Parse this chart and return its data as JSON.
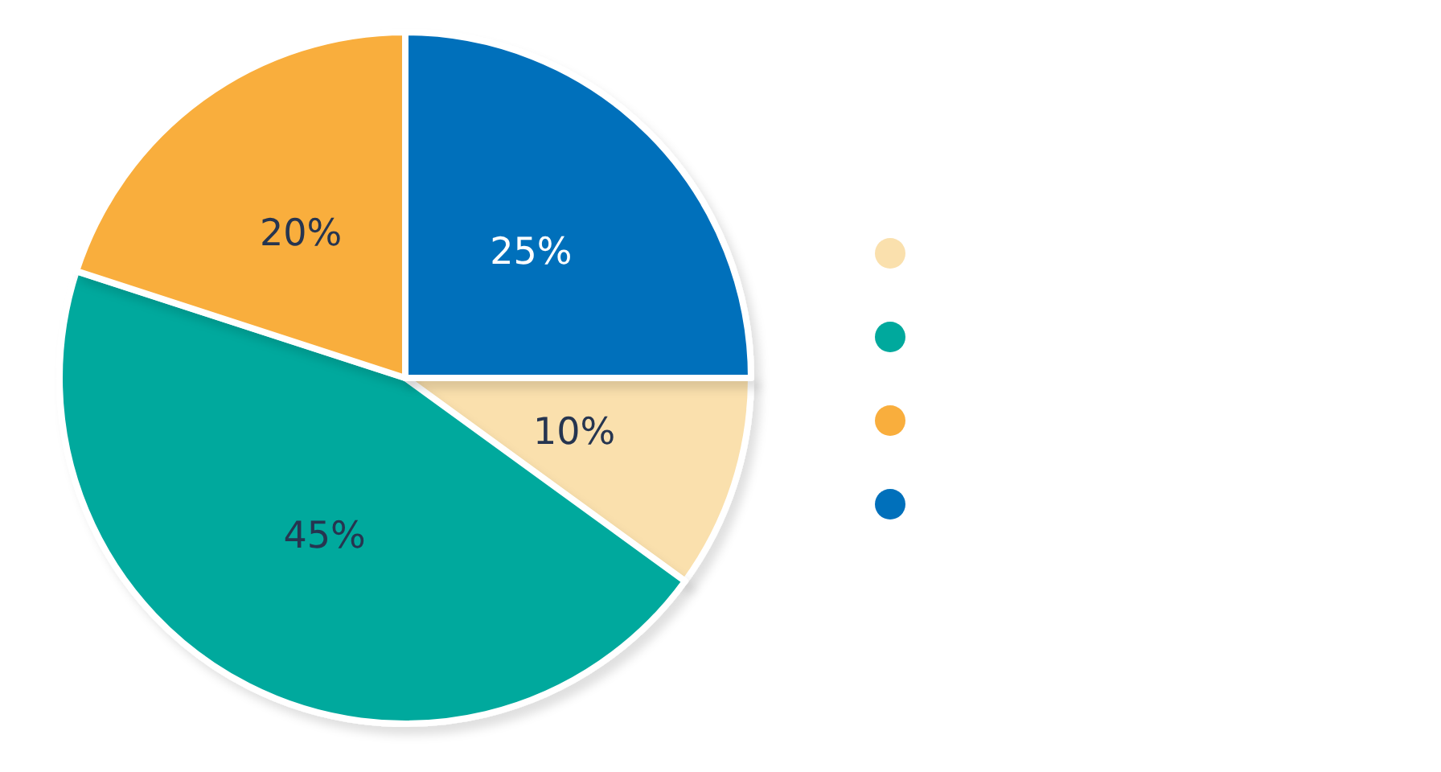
{
  "chart_data": {
    "type": "pie",
    "categories": [
      null,
      null,
      null,
      null
    ],
    "values": [
      10,
      45,
      20,
      25
    ],
    "colors": [
      "#fae0ad",
      "#00a99d",
      "#f9ae3d",
      "#0070bb"
    ],
    "value_labels": [
      "10%",
      "45%",
      "20%",
      "25%"
    ]
  }
}
